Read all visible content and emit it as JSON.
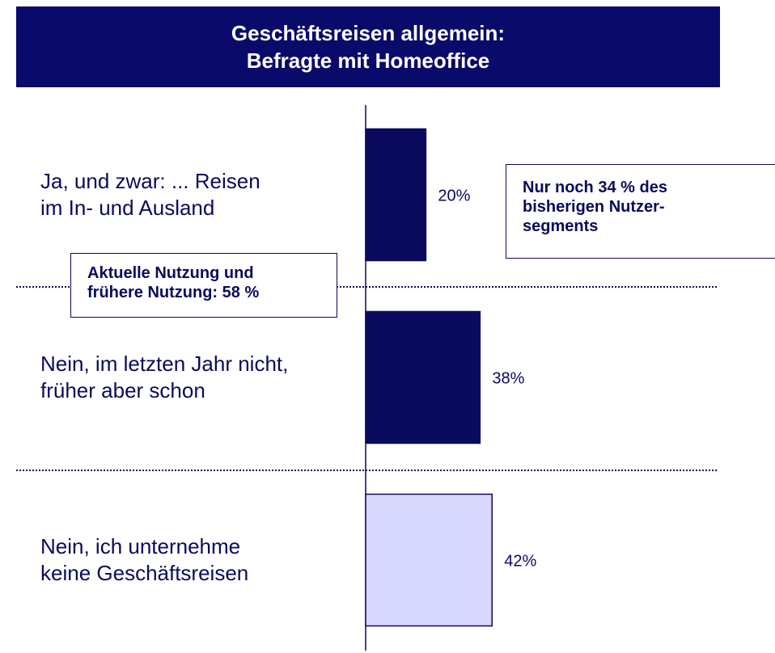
{
  "chart_data": {
    "type": "bar",
    "orientation": "horizontal",
    "title": "Geschäftsreisen allgemein:\nBefragte mit Homeoffice",
    "categories": [
      "Ja, und zwar: ... Reisen\nim In- und Ausland",
      "Nein, im letzten Jahr nicht,\nfrüher aber schon",
      "Nein, ich unternehme\nkeine Geschäftsreisen"
    ],
    "values": [
      20,
      38,
      42
    ],
    "value_labels": [
      "20%",
      "38%",
      "42%"
    ],
    "colors": [
      "#0a0a5e",
      "#0a0a5e",
      "#d8d8ff"
    ],
    "annotations": [
      "Nur noch 34 % des\nbisherigen Nutzer-\nsegments",
      "Aktuelle Nutzung und\nfrühere Nutzung:  58 %"
    ]
  }
}
